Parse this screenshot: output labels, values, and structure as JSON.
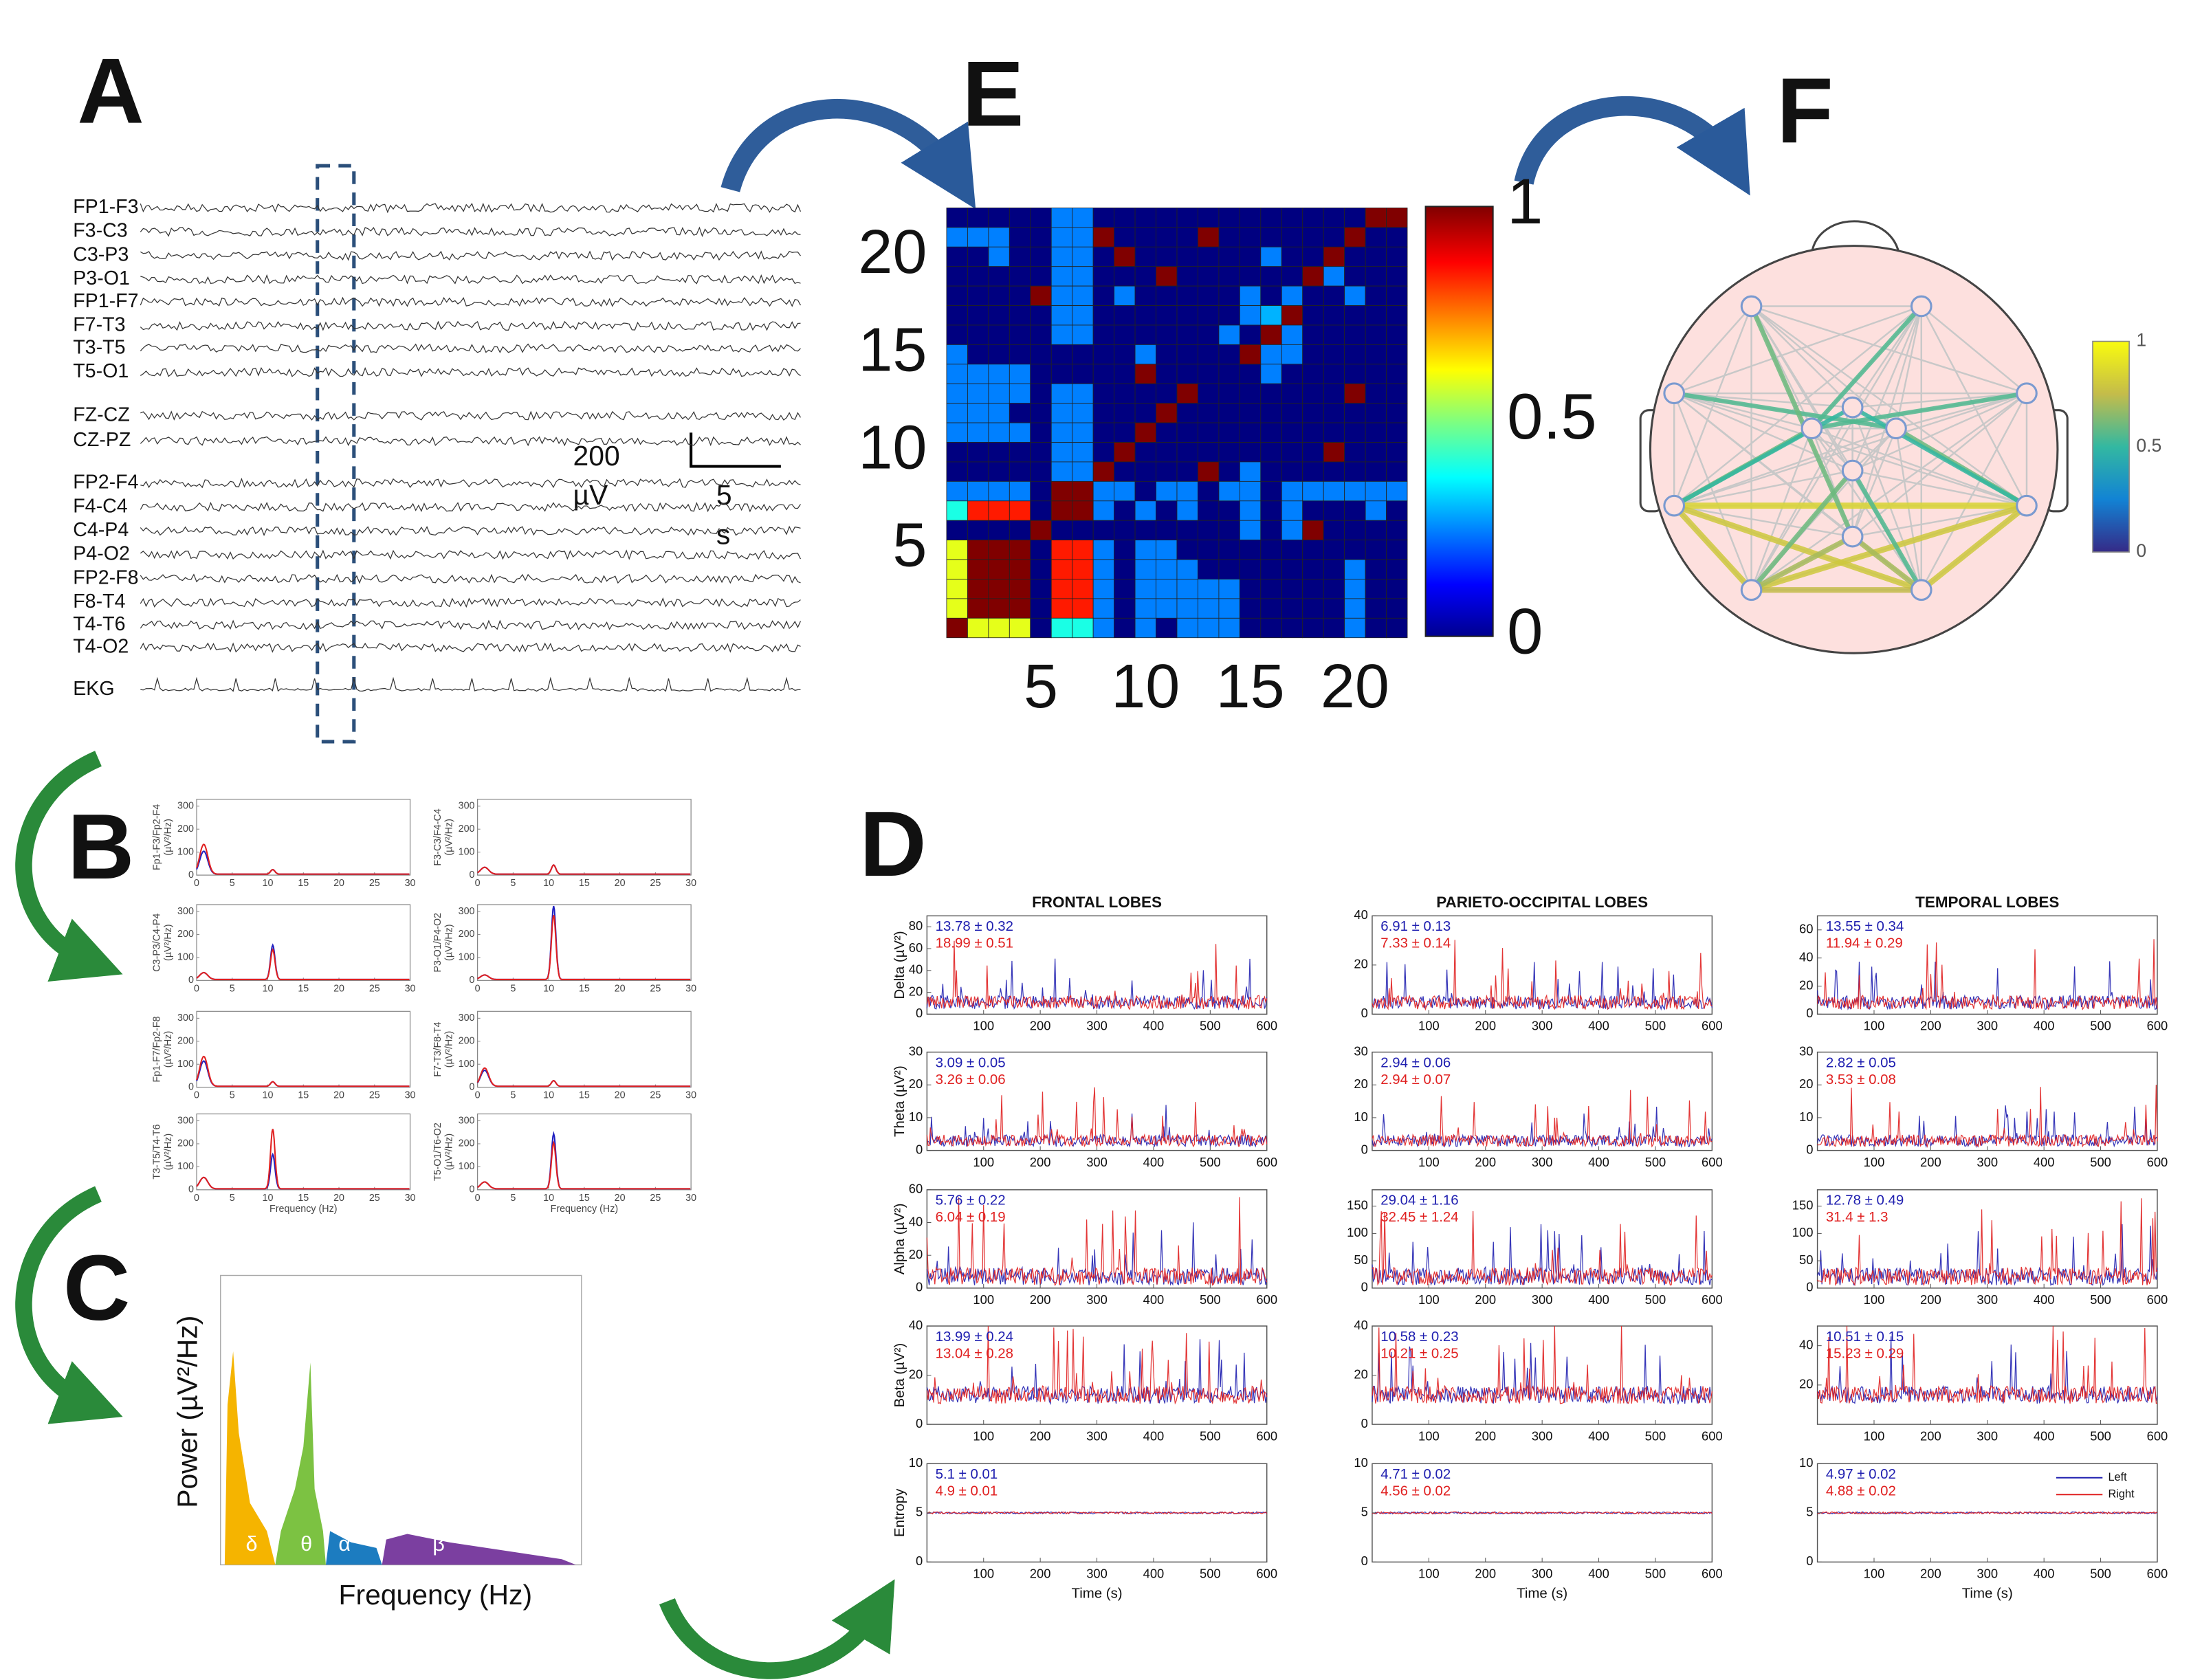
{
  "figure": {
    "labels": [
      "A",
      "B",
      "C",
      "D",
      "E",
      "F"
    ],
    "eeg": {
      "channels": [
        "FP1-F3",
        "F3-C3",
        "C3-P3",
        "P3-O1",
        "FP1-F7",
        "F7-T3",
        "T3-T5",
        "T5-O1",
        "FZ-CZ",
        "CZ-PZ",
        "FP2-F4",
        "F4-C4",
        "C4-P4",
        "P4-O2",
        "FP2-F8",
        "F8-T4",
        "T4-T6",
        "T4-O2",
        "EKG"
      ],
      "scale_amplitude": "200",
      "amplitude_unit": "µV",
      "scale_time": "5",
      "time_unit": "s"
    },
    "spectra": {
      "unit": "(µV²/Hz)",
      "xlabel": "Frequency (Hz)",
      "ylim": [
        0,
        330
      ],
      "yticks": [
        0,
        100,
        200,
        300
      ],
      "xlim": [
        0,
        30
      ],
      "xticks": [
        0,
        5,
        10,
        15,
        20,
        25,
        30
      ],
      "plots": [
        {
          "ylabel": "Fp1-F3/Fp2-F4",
          "peaks": [
            {
              "color": "#2020c0",
              "delta": 100,
              "alpha": 20
            },
            {
              "color": "#e02020",
              "delta": 130,
              "alpha": 20
            }
          ]
        },
        {
          "ylabel": "F3-C3/F4-C4",
          "peaks": [
            {
              "color": "#2020c0",
              "delta": 30,
              "alpha": 40
            },
            {
              "color": "#e02020",
              "delta": 30,
              "alpha": 40
            }
          ]
        },
        {
          "ylabel": "C3-P3/C4-P4",
          "peaks": [
            {
              "color": "#2020c0",
              "delta": 30,
              "alpha": 150
            },
            {
              "color": "#e02020",
              "delta": 30,
              "alpha": 130
            }
          ]
        },
        {
          "ylabel": "P3-O1/P4-O2",
          "peaks": [
            {
              "color": "#2020c0",
              "delta": 20,
              "alpha": 320
            },
            {
              "color": "#e02020",
              "delta": 20,
              "alpha": 280
            }
          ]
        },
        {
          "ylabel": "Fp1-F7/Fp2-F8",
          "peaks": [
            {
              "color": "#2020c0",
              "delta": 110,
              "alpha": 20
            },
            {
              "color": "#e02020",
              "delta": 130,
              "alpha": 20
            }
          ]
        },
        {
          "ylabel": "F7-T3/F8-T4",
          "peaks": [
            {
              "color": "#2020c0",
              "delta": 70,
              "alpha": 25
            },
            {
              "color": "#e02020",
              "delta": 80,
              "alpha": 25
            }
          ]
        },
        {
          "ylabel": "T3-T5/T4-T6",
          "peaks": [
            {
              "color": "#2020c0",
              "delta": 50,
              "alpha": 150
            },
            {
              "color": "#e02020",
              "delta": 50,
              "alpha": 260
            }
          ]
        },
        {
          "ylabel": "T5-O1/T6-O2",
          "peaks": [
            {
              "color": "#2020c0",
              "delta": 30,
              "alpha": 240
            },
            {
              "color": "#e02020",
              "delta": 30,
              "alpha": 200
            }
          ]
        }
      ]
    },
    "band_power": {
      "ylabel": "Power (µV²/Hz)",
      "xlabel": "Frequency (Hz)",
      "bands": [
        {
          "label": "δ",
          "color": "#f5b400"
        },
        {
          "label": "θ",
          "color": "#7cc242"
        },
        {
          "label": "α",
          "color": "#1c7cc0"
        },
        {
          "label": "β",
          "color": "#7b3fa0"
        }
      ]
    },
    "time_series": {
      "columns": [
        "FRONTAL LOBES",
        "PARIETO-OCCIPITAL LOBES",
        "TEMPORAL LOBES"
      ],
      "xlabel": "Time (s)",
      "xlim": [
        0,
        600
      ],
      "xticks": [
        100,
        200,
        300,
        400,
        500,
        600
      ],
      "legend": [
        "Left",
        "Right"
      ],
      "colors": [
        "#2020b0",
        "#e02020"
      ],
      "rows": [
        {
          "label": "Delta (µV²)",
          "cells": [
            {
              "ylim": [
                0,
                90
              ],
              "yticks": [
                0,
                20,
                40,
                60,
                80
              ],
              "stats": [
                "13.78 ± 0.32",
                "18.99 ± 0.51"
              ]
            },
            {
              "ylim": [
                0,
                40
              ],
              "yticks": [
                0,
                20,
                40
              ],
              "stats": [
                "6.91 ± 0.13",
                "7.33 ± 0.14"
              ]
            },
            {
              "ylim": [
                0,
                70
              ],
              "yticks": [
                0,
                20,
                40,
                60
              ],
              "stats": [
                "13.55 ± 0.34",
                "11.94 ± 0.29"
              ]
            }
          ]
        },
        {
          "label": "Theta (µV²)",
          "cells": [
            {
              "ylim": [
                0,
                30
              ],
              "yticks": [
                0,
                10,
                20,
                30
              ],
              "stats": [
                "3.09 ± 0.05",
                "3.26 ± 0.06"
              ]
            },
            {
              "ylim": [
                0,
                30
              ],
              "yticks": [
                0,
                10,
                20,
                30
              ],
              "stats": [
                "2.94 ± 0.06",
                "2.94 ± 0.07"
              ]
            },
            {
              "ylim": [
                0,
                30
              ],
              "yticks": [
                0,
                10,
                20,
                30
              ],
              "stats": [
                "2.82 ± 0.05",
                "3.53 ± 0.08"
              ]
            }
          ]
        },
        {
          "label": "Alpha (µV²)",
          "cells": [
            {
              "ylim": [
                0,
                60
              ],
              "yticks": [
                0,
                20,
                40,
                60
              ],
              "stats": [
                "5.76 ± 0.22",
                "6.04 ± 0.19"
              ]
            },
            {
              "ylim": [
                0,
                180
              ],
              "yticks": [
                0,
                50,
                100,
                150
              ],
              "stats": [
                "29.04 ± 1.16",
                "32.45 ± 1.24"
              ]
            },
            {
              "ylim": [
                0,
                180
              ],
              "yticks": [
                0,
                50,
                100,
                150
              ],
              "stats": [
                "12.78 ± 0.49",
                "31.4 ± 1.3"
              ]
            }
          ]
        },
        {
          "label": "Beta (µV²)",
          "cells": [
            {
              "ylim": [
                0,
                40
              ],
              "yticks": [
                0,
                20,
                40
              ],
              "stats": [
                "13.99 ± 0.24",
                "13.04 ± 0.28"
              ]
            },
            {
              "ylim": [
                0,
                40
              ],
              "yticks": [
                0,
                20,
                40
              ],
              "stats": [
                "10.58 ± 0.23",
                "10.21 ± 0.25"
              ]
            },
            {
              "ylim": [
                0,
                50
              ],
              "yticks": [
                20,
                40
              ],
              "stats": [
                "10.51 ± 0.15",
                "15.23 ± 0.29"
              ]
            }
          ]
        },
        {
          "label": "Entropy",
          "cells": [
            {
              "ylim": [
                0,
                10
              ],
              "yticks": [
                0,
                5,
                10
              ],
              "stats": [
                "5.1 ± 0.01",
                "4.9 ± 0.01"
              ]
            },
            {
              "ylim": [
                0,
                10
              ],
              "yticks": [
                0,
                5,
                10
              ],
              "stats": [
                "4.71 ± 0.02",
                "4.56 ± 0.02"
              ]
            },
            {
              "ylim": [
                0,
                10
              ],
              "yticks": [
                0,
                5,
                10
              ],
              "stats": [
                "4.97 ± 0.02",
                "4.88 ± 0.02"
              ]
            }
          ]
        }
      ]
    },
    "connectivity": {
      "xticks": [
        5,
        10,
        15,
        20
      ],
      "yticks": [
        5,
        10,
        15,
        20
      ],
      "colorbar_ticks": [
        0,
        0.5,
        1
      ],
      "matrix": [
        [
          0,
          0,
          0,
          0,
          0,
          0.25,
          0.25,
          0,
          0,
          0,
          0,
          0,
          0,
          0,
          0,
          0,
          0,
          0,
          0,
          0,
          1,
          1
        ],
        [
          0.25,
          0.25,
          0.25,
          0,
          0,
          0.25,
          0.25,
          1,
          0,
          0,
          0,
          0,
          1,
          0,
          0,
          0,
          0,
          0,
          0,
          1,
          0,
          0
        ],
        [
          0,
          0,
          0.25,
          0,
          0,
          0.25,
          0.25,
          0,
          1,
          0,
          0,
          0,
          0,
          0,
          0,
          0.25,
          0,
          0,
          1,
          0,
          0,
          0
        ],
        [
          0,
          0,
          0,
          0,
          0,
          0.25,
          0.25,
          0,
          0,
          0,
          1,
          0,
          0,
          0,
          0,
          0,
          0,
          1,
          0.25,
          0,
          0,
          0
        ],
        [
          0,
          0,
          0,
          0,
          1,
          0.25,
          0.25,
          0,
          0.25,
          0,
          0,
          0,
          0,
          0,
          0.25,
          0,
          0.25,
          0,
          0,
          0.25,
          0,
          0
        ],
        [
          0,
          0,
          0,
          0,
          0,
          0.25,
          0.25,
          0,
          0,
          0,
          0,
          0,
          0,
          0,
          0.25,
          0.3,
          1,
          0,
          0,
          0,
          0,
          0
        ],
        [
          0,
          0,
          0,
          0,
          0,
          0.25,
          0.25,
          0,
          0,
          0,
          0,
          0,
          0,
          0.25,
          0,
          1,
          0.25,
          0,
          0,
          0,
          0,
          0
        ],
        [
          0.25,
          0,
          0,
          0,
          0,
          0,
          0,
          0,
          0,
          0.25,
          0,
          0,
          0,
          0,
          1,
          0.25,
          0.25,
          0,
          0,
          0,
          0,
          0
        ],
        [
          0.25,
          0.25,
          0.25,
          0.25,
          0,
          0,
          0,
          0,
          0,
          1,
          0,
          0,
          0,
          0,
          0,
          0.25,
          0,
          0,
          0,
          0,
          0,
          0
        ],
        [
          0.25,
          0.25,
          0.25,
          0.25,
          0,
          0.25,
          0.25,
          0,
          0,
          0,
          0,
          1,
          0,
          0,
          0,
          0,
          0,
          0,
          0,
          1,
          0,
          0
        ],
        [
          0.25,
          0.25,
          0.25,
          0,
          0,
          0.25,
          0.25,
          0,
          0,
          0,
          1,
          0,
          0,
          0,
          0,
          0,
          0,
          0,
          0,
          0,
          0,
          0
        ],
        [
          0.25,
          0.25,
          0.25,
          0.25,
          0,
          0.25,
          0.25,
          0,
          0,
          1,
          0,
          0,
          0,
          0,
          0,
          0,
          0,
          0,
          0,
          0,
          0,
          0
        ],
        [
          0,
          0,
          0,
          0,
          0,
          0.25,
          0.25,
          0,
          1,
          0,
          0,
          0,
          0,
          0,
          0,
          0,
          0,
          0,
          1,
          0,
          0,
          0
        ],
        [
          0,
          0,
          0,
          0,
          0,
          0.25,
          0.25,
          1,
          0,
          0,
          0,
          0,
          1,
          0,
          0.25,
          0,
          0,
          0,
          0,
          0,
          0,
          0
        ],
        [
          0.25,
          0.25,
          0.25,
          0.25,
          0,
          1,
          1,
          0.25,
          0.25,
          0,
          0.25,
          0.25,
          0,
          0.25,
          0.25,
          0,
          0.25,
          0.25,
          0.25,
          0.25,
          0.25,
          0.25
        ],
        [
          0.4,
          0.85,
          0.85,
          0.85,
          0,
          1,
          1,
          0.25,
          0,
          0.25,
          0,
          0.25,
          0,
          0,
          0.25,
          0,
          0.25,
          0,
          0,
          0,
          0.25,
          0
        ],
        [
          0,
          0,
          0,
          0,
          1,
          0,
          0,
          0,
          0,
          0,
          0,
          0,
          0,
          0,
          0.25,
          0,
          0.25,
          1,
          0,
          0,
          0,
          0
        ],
        [
          0.6,
          1,
          1,
          1,
          0,
          0.85,
          0.85,
          0.25,
          0,
          0.25,
          0.25,
          0,
          0,
          0,
          0,
          0,
          0,
          0,
          0,
          0,
          0,
          0
        ],
        [
          0.6,
          1,
          1,
          1,
          0,
          0.85,
          0.85,
          0.25,
          0,
          0.25,
          0.25,
          0.25,
          0,
          0,
          0,
          0,
          0,
          0,
          0,
          0.25,
          0,
          0
        ],
        [
          0.6,
          1,
          1,
          1,
          0,
          0.85,
          0.85,
          0.25,
          0,
          0.25,
          0.25,
          0.25,
          0.25,
          0.25,
          0,
          0,
          0,
          0,
          0,
          0.25,
          0,
          0
        ],
        [
          0.6,
          1,
          1,
          1,
          0,
          0.85,
          0.85,
          0.25,
          0,
          0.25,
          0.25,
          0.25,
          0.25,
          0.25,
          0,
          0,
          0,
          0,
          0,
          0.25,
          0,
          0
        ],
        [
          1,
          0.6,
          0.6,
          0.6,
          0,
          0.4,
          0.4,
          0.25,
          0,
          0.25,
          0,
          0.25,
          0.25,
          0.25,
          0,
          0,
          0,
          0,
          0,
          0.25,
          0,
          0
        ]
      ]
    },
    "network": {
      "colorbar_ticks": [
        0,
        0.5,
        1
      ],
      "edges": [
        [
          8,
          9,
          0.85
        ],
        [
          8,
          10,
          0.8
        ],
        [
          8,
          11,
          0.8
        ],
        [
          9,
          10,
          0.8
        ],
        [
          9,
          11,
          0.8
        ],
        [
          10,
          11,
          0.75
        ],
        [
          8,
          5,
          0.6
        ],
        [
          2,
          6,
          0.55
        ],
        [
          3,
          5,
          0.55
        ],
        [
          6,
          9,
          0.6
        ],
        [
          7,
          10,
          0.6
        ],
        [
          7,
          11,
          0.55
        ],
        [
          4,
          8,
          0.5
        ],
        [
          4,
          9,
          0.5
        ],
        [
          0,
          12,
          0.6
        ],
        [
          1,
          5,
          0.55
        ],
        [
          12,
          10,
          0.7
        ],
        [
          12,
          11,
          0.7
        ]
      ]
    }
  }
}
